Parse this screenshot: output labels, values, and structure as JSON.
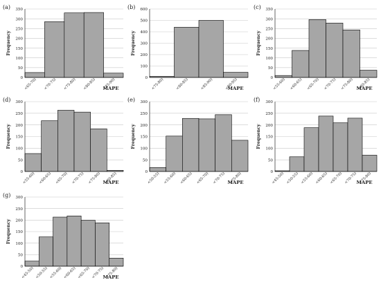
{
  "chart_data": [
    {
      "panel": "(a)",
      "type": "bar",
      "categories": [
        "<65-70)",
        "<70-75)",
        "<75-80)",
        "<80-85)",
        "<85-90)"
      ],
      "values": [
        25,
        285,
        330,
        332,
        22
      ],
      "ylim": [
        0,
        350
      ],
      "yticks": [
        0,
        50,
        100,
        150,
        200,
        250,
        300,
        350
      ],
      "ylabel": "Frequency",
      "xlabel": "MAPE"
    },
    {
      "panel": "(b)",
      "type": "bar",
      "categories": [
        "<75-80)",
        "<80-85)",
        "<85-90)",
        "<90-95)"
      ],
      "values": [
        10,
        440,
        500,
        45
      ],
      "ylim": [
        0,
        600
      ],
      "yticks": [
        0,
        100,
        200,
        300,
        400,
        500,
        600
      ],
      "ylabel": "Frequency",
      "xlabel": "MAPE"
    },
    {
      "panel": "(c)",
      "type": "bar",
      "categories": [
        "<55-60)",
        "<60-65)",
        "<65-70)",
        "<70-75)",
        "<75-80)",
        "<80-85)"
      ],
      "values": [
        10,
        138,
        296,
        278,
        243,
        37
      ],
      "ylim": [
        0,
        350
      ],
      "yticks": [
        0,
        50,
        100,
        150,
        200,
        250,
        300,
        350
      ],
      "ylabel": "Frequency",
      "xlabel": "MAPE"
    },
    {
      "panel": "(d)",
      "type": "bar",
      "categories": [
        "<55-60)",
        "<60-65)",
        "<65-70)",
        "<70-75)",
        "<75-80)",
        "<80-85)"
      ],
      "values": [
        77,
        218,
        263,
        255,
        183,
        5
      ],
      "ylim": [
        0,
        300
      ],
      "yticks": [
        0,
        50,
        100,
        150,
        200,
        250,
        300
      ],
      "ylabel": "Frequency",
      "xlabel": "MAPE"
    },
    {
      "panel": "(e)",
      "type": "bar",
      "categories": [
        "<50-55)",
        "<55-60)",
        "<60-65)",
        "<65-70)",
        "<70-75)",
        "<75-80)"
      ],
      "values": [
        17,
        152,
        228,
        226,
        244,
        134
      ],
      "ylim": [
        0,
        300
      ],
      "yticks": [
        0,
        50,
        100,
        150,
        200,
        250,
        300
      ],
      "ylabel": "Frequency",
      "xlabel": "MAPE"
    },
    {
      "panel": "(f)",
      "type": "bar",
      "categories": [
        "<45-50)",
        "<50-55)",
        "<55-60)",
        "<60-65)",
        "<65-70)",
        "<70-75)",
        "<75-80)"
      ],
      "values": [
        3,
        63,
        188,
        238,
        209,
        229,
        70
      ],
      "ylim": [
        0,
        300
      ],
      "yticks": [
        0,
        50,
        100,
        150,
        200,
        250,
        300
      ],
      "ylabel": "Frequency",
      "xlabel": "MAPE"
    },
    {
      "panel": "(g)",
      "type": "bar",
      "categories": [
        "<45-50)",
        "<50-55)",
        "<55-60)",
        "<60-65)",
        "<65-70)",
        "<70-75)",
        "<75-80)"
      ],
      "values": [
        22,
        127,
        213,
        218,
        199,
        188,
        35
      ],
      "ylim": [
        0,
        300
      ],
      "yticks": [
        0,
        50,
        100,
        150,
        200,
        250,
        300
      ],
      "ylabel": "Frequency",
      "xlabel": "MAPE"
    }
  ],
  "style": {
    "bar_fill": "#a6a6a6",
    "bar_stroke": "#000000",
    "grid_color": "#c8c8c8"
  }
}
